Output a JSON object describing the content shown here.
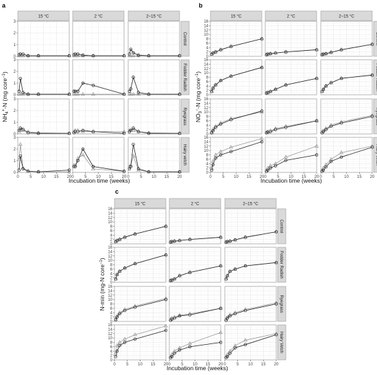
{
  "figure": {
    "panels": [
      {
        "label": "a",
        "ylabel": "NH4+-N (mg core−1)",
        "ylabel_main": "NH",
        "ylabel_sub": "4",
        "ylabel_sup": "+",
        "ylabel_rest": "-N (mg core",
        "ylabel_sup2": "−1",
        "ylabel_end": ")",
        "xlabel": "Incubation time (weeks)"
      },
      {
        "label": "b",
        "ylabel": "NO3−-N (mg core−1)",
        "ylabel_main": "NO",
        "ylabel_sub": "3",
        "ylabel_sup": "−",
        "ylabel_rest": "-N (mg core",
        "ylabel_sup2": "−1",
        "ylabel_end": ")",
        "xlabel": "Incubation time (weeks)"
      },
      {
        "label": "c",
        "ylabel": "N-min (mg-N core−1)",
        "ylabel_main": "N-min (mg-N core",
        "ylabel_sub": "",
        "ylabel_sup": "−1",
        "ylabel_rest": "",
        "ylabel_sup2": "",
        "ylabel_end": ")",
        "xlabel": "Incubation time (weeks)"
      }
    ],
    "columns": [
      "15 °C",
      "2 °C",
      "2–15 °C"
    ],
    "rows": [
      "Control",
      "Fodder Radish",
      "Ryegrass",
      "Hairy vetch"
    ],
    "rows_c": [
      "Control",
      "Fodder Radish",
      "Ryegrass",
      "Hairy Vetch"
    ]
  },
  "colors": {
    "series_dark": "#222222",
    "series_light": "#9a9a9a",
    "strip": "#d9d9d9"
  },
  "chart_data": [
    {
      "panel": "a",
      "type": "scatter",
      "xlabel": "Incubation time (weeks)",
      "xlim": [
        0,
        20
      ],
      "ylim": [
        0,
        3
      ],
      "xticks": [
        0,
        5,
        10,
        15,
        20
      ],
      "yticks": [
        0,
        1,
        2,
        3
      ],
      "x": [
        0.5,
        1,
        2,
        4,
        8,
        20
      ],
      "series_styles": {
        "circle": "open circles, dark line",
        "triangle": "open triangles, light line"
      },
      "facets": [
        {
          "row": "Control",
          "col": "15 °C",
          "circle": [
            0.15,
            0.2,
            0.2,
            0.05,
            0.05,
            0.05
          ],
          "triangle": [
            0.05,
            0.05,
            0.05,
            0.05,
            0.05,
            0.05
          ]
        },
        {
          "row": "Control",
          "col": "2 °C",
          "circle": [
            0.15,
            0.2,
            0.2,
            0.1,
            0.05,
            0.05
          ],
          "triangle": [
            0.05,
            0.05,
            0.05,
            0.05,
            0.05,
            0.05
          ]
        },
        {
          "row": "Control",
          "col": "2–15 °C",
          "circle": [
            0.2,
            0.6,
            0.3,
            0.1,
            0.05,
            0.05
          ],
          "triangle": [
            0.05,
            0.05,
            0.05,
            0.05,
            0.05,
            0.05
          ]
        },
        {
          "row": "Fodder Radish",
          "col": "15 °C",
          "circle": [
            0.3,
            1.4,
            0.2,
            0.05,
            0.05,
            0.05
          ],
          "triangle": [
            0.05,
            0.05,
            0.05,
            0.05,
            0.05,
            0.05
          ]
        },
        {
          "row": "Fodder Radish",
          "col": "2 °C",
          "circle": [
            0.3,
            0.3,
            0.3,
            1.0,
            0.8,
            0.05
          ],
          "triangle": [
            0.05,
            0.05,
            0.05,
            0.05,
            0.05,
            0.05
          ]
        },
        {
          "row": "Fodder Radish",
          "col": "2–15 °C",
          "circle": [
            0.3,
            0.5,
            1.5,
            0.2,
            0.05,
            0.05
          ],
          "triangle": [
            0.05,
            0.05,
            0.05,
            0.05,
            0.05,
            0.05
          ]
        },
        {
          "row": "Ryegrass",
          "col": "15 °C",
          "circle": [
            0.3,
            0.5,
            0.4,
            0.1,
            0.05,
            0.05
          ],
          "triangle": [
            0.2,
            0.3,
            0.3,
            0.2,
            0.1,
            0.05
          ]
        },
        {
          "row": "Ryegrass",
          "col": "2 °C",
          "circle": [
            0.1,
            0.2,
            0.2,
            0.3,
            0.2,
            0.05
          ],
          "triangle": [
            0.2,
            0.3,
            0.3,
            0.2,
            0.2,
            0.2
          ]
        },
        {
          "row": "Ryegrass",
          "col": "2–15 °C",
          "circle": [
            0.2,
            0.3,
            0.5,
            0.2,
            0.05,
            0.05
          ],
          "triangle": [
            0.3,
            0.3,
            0.3,
            0.2,
            0.1,
            0.05
          ]
        },
        {
          "row": "Hairy vetch",
          "col": "15 °C",
          "circle": [
            0.2,
            1.4,
            0.3,
            0.1,
            0.05,
            0.2
          ],
          "triangle": [
            1.1,
            2.4,
            0.4,
            0.1,
            0.05,
            0.05
          ]
        },
        {
          "row": "Hairy vetch",
          "col": "2 °C",
          "circle": [
            0.5,
            0.5,
            1.0,
            2.0,
            0.5,
            0.1
          ],
          "triangle": [
            0.6,
            0.6,
            1.2,
            1.5,
            0.3,
            0.1
          ]
        },
        {
          "row": "Hairy vetch",
          "col": "2–15 °C",
          "circle": [
            0.3,
            0.5,
            2.4,
            0.3,
            0.05,
            0.05
          ],
          "triangle": [
            0.5,
            0.6,
            1.4,
            0.2,
            0.05,
            0.05
          ]
        }
      ]
    },
    {
      "panel": "b",
      "type": "scatter",
      "xlabel": "Incubation time (weeks)",
      "xlim": [
        0,
        20
      ],
      "ylim": [
        0,
        16
      ],
      "xticks": [
        0,
        5,
        10,
        15,
        20
      ],
      "yticks": [
        0,
        2,
        4,
        6,
        8,
        10,
        12,
        14,
        16
      ],
      "x": [
        0.5,
        1,
        2,
        4,
        8,
        20
      ],
      "facets": [
        {
          "row": "Control",
          "col": "15 °C",
          "circle": [
            1.0,
            1.5,
            2.0,
            3.0,
            4.5,
            8.0
          ],
          "triangle": [
            1.0,
            1.5,
            2.0,
            3.0,
            4.5,
            8.0
          ]
        },
        {
          "row": "Control",
          "col": "2 °C",
          "circle": [
            0.8,
            1.0,
            1.2,
            1.5,
            2.0,
            3.0
          ],
          "triangle": [
            0.8,
            1.0,
            1.2,
            1.5,
            2.0,
            3.0
          ]
        },
        {
          "row": "Control",
          "col": "2–15 °C",
          "circle": [
            0.8,
            1.0,
            1.2,
            1.8,
            3.0,
            5.5
          ],
          "triangle": [
            0.8,
            1.0,
            1.2,
            1.8,
            3.0,
            5.5
          ]
        },
        {
          "row": "Fodder Radish",
          "col": "15 °C",
          "circle": [
            1.5,
            3.0,
            4.5,
            6.5,
            8.5,
            12.5
          ],
          "triangle": [
            1.5,
            3.0,
            4.5,
            6.5,
            8.5,
            12.5
          ]
        },
        {
          "row": "Fodder Radish",
          "col": "2 °C",
          "circle": [
            0.8,
            1.0,
            1.5,
            2.5,
            4.5,
            7.5
          ],
          "triangle": [
            0.8,
            1.0,
            1.5,
            2.5,
            4.5,
            7.5
          ]
        },
        {
          "row": "Fodder Radish",
          "col": "2–15 °C",
          "circle": [
            1.5,
            2.5,
            4.0,
            5.5,
            7.5,
            9.0
          ],
          "triangle": [
            1.5,
            2.5,
            4.0,
            5.5,
            7.5,
            9.0
          ]
        },
        {
          "row": "Ryegrass",
          "col": "15 °C",
          "circle": [
            0.5,
            1.5,
            3.0,
            4.5,
            6.5,
            10.5
          ],
          "triangle": [
            0.8,
            2.0,
            3.5,
            5.0,
            7.0,
            10.0
          ]
        },
        {
          "row": "Ryegrass",
          "col": "2 °C",
          "circle": [
            0.5,
            0.8,
            1.0,
            2.0,
            3.0,
            6.0
          ],
          "triangle": [
            0.8,
            1.0,
            1.5,
            2.5,
            3.5,
            6.0
          ]
        },
        {
          "row": "Ryegrass",
          "col": "2–15 °C",
          "circle": [
            0.5,
            1.0,
            2.0,
            3.5,
            5.0,
            8.0
          ],
          "triangle": [
            1.0,
            1.5,
            2.5,
            4.0,
            5.5,
            8.5
          ]
        },
        {
          "row": "Hairy vetch",
          "col": "15 °C",
          "circle": [
            1.0,
            3.5,
            6.5,
            8.0,
            9.5,
            14.0
          ],
          "triangle": [
            2.0,
            5.0,
            8.0,
            9.5,
            11.5,
            15.5
          ]
        },
        {
          "row": "Hairy vetch",
          "col": "2 °C",
          "circle": [
            0.5,
            1.0,
            2.0,
            3.0,
            5.5,
            8.0
          ],
          "triangle": [
            1.0,
            2.0,
            3.0,
            4.0,
            7.0,
            12.0
          ]
        },
        {
          "row": "Hairy vetch",
          "col": "2–15 °C",
          "circle": [
            0.5,
            1.0,
            2.5,
            5.0,
            7.0,
            11.5
          ],
          "triangle": [
            1.0,
            2.0,
            3.5,
            6.0,
            9.0,
            12.0
          ]
        }
      ]
    },
    {
      "panel": "c",
      "type": "scatter",
      "xlabel": "Incubation time (weeks)",
      "xlim": [
        0,
        20
      ],
      "ylim": [
        0,
        16
      ],
      "xticks": [
        0,
        5,
        10,
        15,
        20
      ],
      "yticks": [
        0,
        2,
        4,
        6,
        8,
        10,
        12,
        14,
        16
      ],
      "x": [
        0.5,
        1,
        2,
        4,
        8,
        20
      ],
      "facets": [
        {
          "row": "Control",
          "col": "15 °C",
          "circle": [
            1.0,
            1.5,
            2.0,
            3.0,
            4.5,
            8.0
          ],
          "triangle": [
            1.0,
            1.5,
            2.0,
            3.0,
            4.5,
            8.0
          ]
        },
        {
          "row": "Control",
          "col": "2 °C",
          "circle": [
            0.8,
            1.0,
            1.2,
            1.5,
            2.0,
            3.0
          ],
          "triangle": [
            0.8,
            1.0,
            1.2,
            1.5,
            2.0,
            3.0
          ]
        },
        {
          "row": "Control",
          "col": "2–15 °C",
          "circle": [
            0.8,
            1.0,
            1.2,
            1.8,
            3.0,
            5.5
          ],
          "triangle": [
            0.8,
            1.0,
            1.2,
            1.8,
            3.0,
            5.5
          ]
        },
        {
          "row": "Fodder Radish",
          "col": "15 °C",
          "circle": [
            1.5,
            3.5,
            5.0,
            6.5,
            8.5,
            12.5
          ],
          "triangle": [
            1.5,
            3.5,
            5.0,
            6.5,
            8.5,
            12.5
          ]
        },
        {
          "row": "Fodder Radish",
          "col": "2 °C",
          "circle": [
            0.8,
            1.0,
            1.5,
            3.0,
            4.5,
            7.5
          ],
          "triangle": [
            0.8,
            1.0,
            1.5,
            3.0,
            4.5,
            7.5
          ]
        },
        {
          "row": "Fodder Radish",
          "col": "2–15 °C",
          "circle": [
            1.5,
            3.0,
            5.0,
            6.0,
            7.5,
            9.0
          ],
          "triangle": [
            1.5,
            3.0,
            5.0,
            6.0,
            7.5,
            9.0
          ]
        },
        {
          "row": "Ryegrass",
          "col": "15 °C",
          "circle": [
            0.8,
            2.0,
            3.5,
            5.0,
            6.5,
            10.0
          ],
          "triangle": [
            1.0,
            2.5,
            4.0,
            5.5,
            7.0,
            10.5
          ]
        },
        {
          "row": "Ryegrass",
          "col": "2 °C",
          "circle": [
            0.5,
            1.0,
            1.5,
            2.5,
            3.0,
            6.0
          ],
          "triangle": [
            1.0,
            1.5,
            2.0,
            2.8,
            3.5,
            6.0
          ]
        },
        {
          "row": "Ryegrass",
          "col": "2–15 °C",
          "circle": [
            0.5,
            1.5,
            2.5,
            3.5,
            5.0,
            8.0
          ],
          "triangle": [
            1.0,
            2.0,
            3.0,
            4.0,
            5.5,
            8.5
          ]
        },
        {
          "row": "Hairy Vetch",
          "col": "15 °C",
          "circle": [
            1.5,
            4.0,
            6.5,
            8.0,
            9.5,
            13.5
          ],
          "triangle": [
            3.0,
            6.5,
            8.0,
            9.5,
            11.5,
            15.5
          ]
        },
        {
          "row": "Hairy Vetch",
          "col": "2 °C",
          "circle": [
            1.0,
            1.5,
            3.0,
            4.5,
            6.0,
            8.0
          ],
          "triangle": [
            1.5,
            2.5,
            4.0,
            5.5,
            7.5,
            12.5
          ]
        },
        {
          "row": "Hairy Vetch",
          "col": "2–15 °C",
          "circle": [
            1.0,
            1.5,
            3.0,
            5.5,
            7.0,
            11.5
          ],
          "triangle": [
            1.5,
            2.5,
            4.0,
            6.5,
            9.0,
            12.0
          ]
        }
      ]
    }
  ]
}
